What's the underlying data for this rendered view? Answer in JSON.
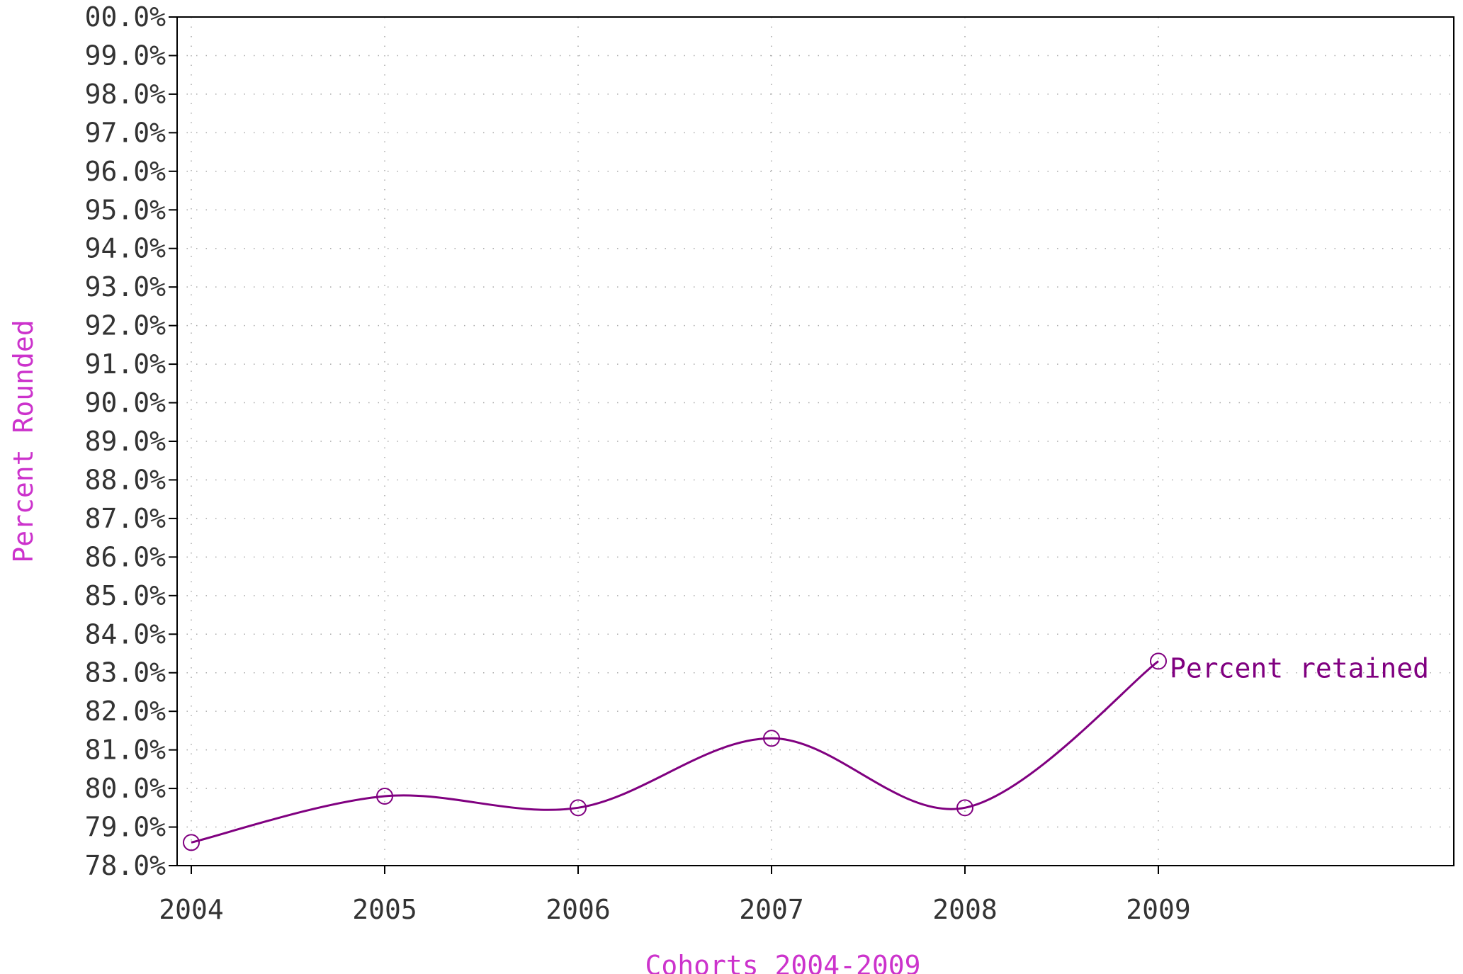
{
  "chart_data": {
    "type": "line",
    "x": [
      "2004",
      "2005",
      "2006",
      "2007",
      "2008",
      "2009"
    ],
    "series": [
      {
        "name": "Percent retained",
        "values": [
          78.6,
          79.8,
          79.5,
          81.3,
          79.5,
          83.3
        ]
      }
    ],
    "y_tick_labels": [
      "78.0%",
      "79.0%",
      "80.0%",
      "81.0%",
      "82.0%",
      "83.0%",
      "84.0%",
      "85.0%",
      "86.0%",
      "87.0%",
      "88.0%",
      "89.0%",
      "90.0%",
      "91.0%",
      "92.0%",
      "93.0%",
      "94.0%",
      "95.0%",
      "96.0%",
      "97.0%",
      "98.0%",
      "99.0%",
      "00.0%"
    ],
    "xlabel": "Cohorts 2004-2009",
    "ylabel": "Percent Rounded",
    "ylim": [
      78,
      100
    ],
    "grid": true,
    "smooth": true,
    "marker": "circle",
    "colors": {
      "series": "#800080",
      "axis_title": "#cc33cc",
      "tick_text": "#333333",
      "grid": "#aaaaaa",
      "frame": "#000000"
    }
  }
}
